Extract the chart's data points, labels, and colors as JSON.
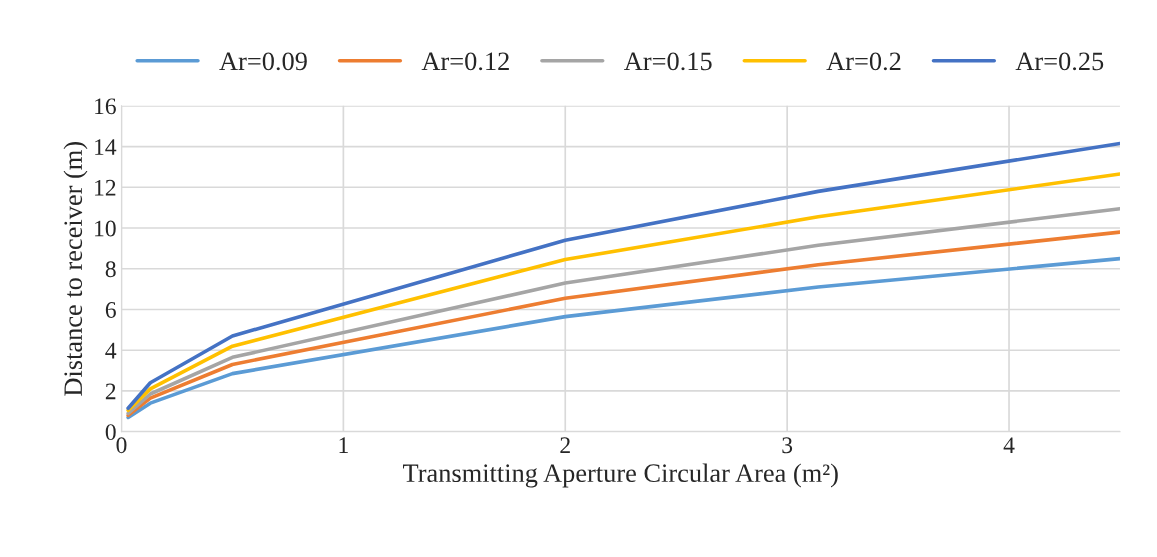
{
  "chart_data": {
    "type": "line",
    "xlabel": "Transmitting Aperture Circular Area (m²)",
    "ylabel": "Distance to receiver (m)",
    "x": [
      0.03,
      0.13,
      0.5,
      2,
      3.14,
      4.5
    ],
    "series": [
      {
        "name": "Ar=0.09",
        "color": "#5b9bd5",
        "values": [
          0.7,
          1.4,
          2.85,
          5.65,
          7.1,
          8.5
        ]
      },
      {
        "name": "Ar=0.12",
        "color": "#ed7d31",
        "values": [
          0.8,
          1.65,
          3.3,
          6.55,
          8.2,
          9.8
        ]
      },
      {
        "name": "Ar=0.15",
        "color": "#a5a5a5",
        "values": [
          0.9,
          1.85,
          3.65,
          7.3,
          9.15,
          10.95
        ]
      },
      {
        "name": "Ar=0.2",
        "color": "#ffc000",
        "values": [
          1.05,
          2.1,
          4.2,
          8.45,
          10.55,
          12.65
        ]
      },
      {
        "name": "Ar=0.25",
        "color": "#4472c4",
        "values": [
          1.15,
          2.4,
          4.7,
          9.4,
          11.8,
          14.15
        ]
      }
    ],
    "xlim": [
      0,
      4.5
    ],
    "xticks": [
      0,
      1,
      2,
      3,
      4
    ],
    "ylim": [
      0,
      16
    ],
    "yticks": [
      0,
      2,
      4,
      6,
      8,
      10,
      12,
      14,
      16
    ],
    "grid": true,
    "legend": "top",
    "marker": "none",
    "line_style": "solid"
  }
}
